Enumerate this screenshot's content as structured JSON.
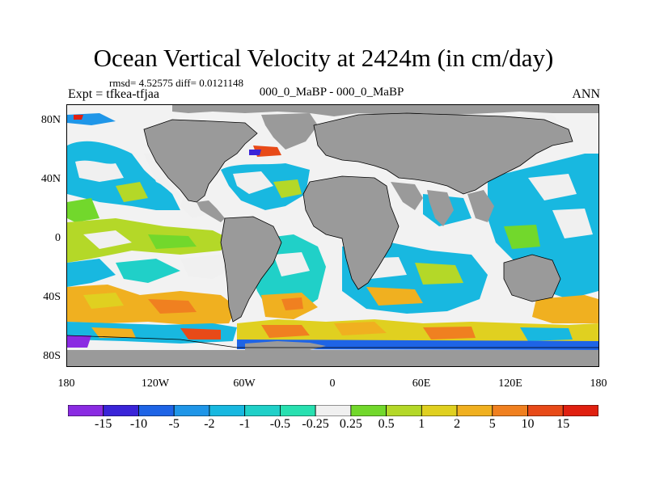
{
  "header": {
    "title": "Ocean Vertical Velocity at 2424m (in cm/day)",
    "stats": "rmsd= 4.52575  diff= 0.0121148",
    "expt": "Expt = tfkea-tfjaa",
    "case": "000_0_MaBP - 000_0_MaBP",
    "season": "ANN"
  },
  "axes": {
    "y_ticks": [
      "80N",
      "40N",
      "0",
      "40S",
      "80S"
    ],
    "x_ticks": [
      "180",
      "120W",
      "60W",
      "0",
      "60E",
      "120E",
      "180"
    ]
  },
  "colorbar": {
    "labels": [
      "-15",
      "-10",
      "-5",
      "-2",
      "-1",
      "-0.5",
      "-0.25",
      "0.25",
      "0.5",
      "1",
      "2",
      "5",
      "10",
      "15"
    ],
    "colors": [
      "#8a2be2",
      "#3a24d8",
      "#1e64e6",
      "#1f96e8",
      "#18b8e0",
      "#20d0c8",
      "#28e0b0",
      "#f0f0f0",
      "#72d82c",
      "#b4d828",
      "#e0d020",
      "#f0b020",
      "#f08020",
      "#e84a18",
      "#e02010"
    ]
  },
  "map": {
    "land_color": "#9a9a9a",
    "ocean_color": "#bfbfbf"
  }
}
